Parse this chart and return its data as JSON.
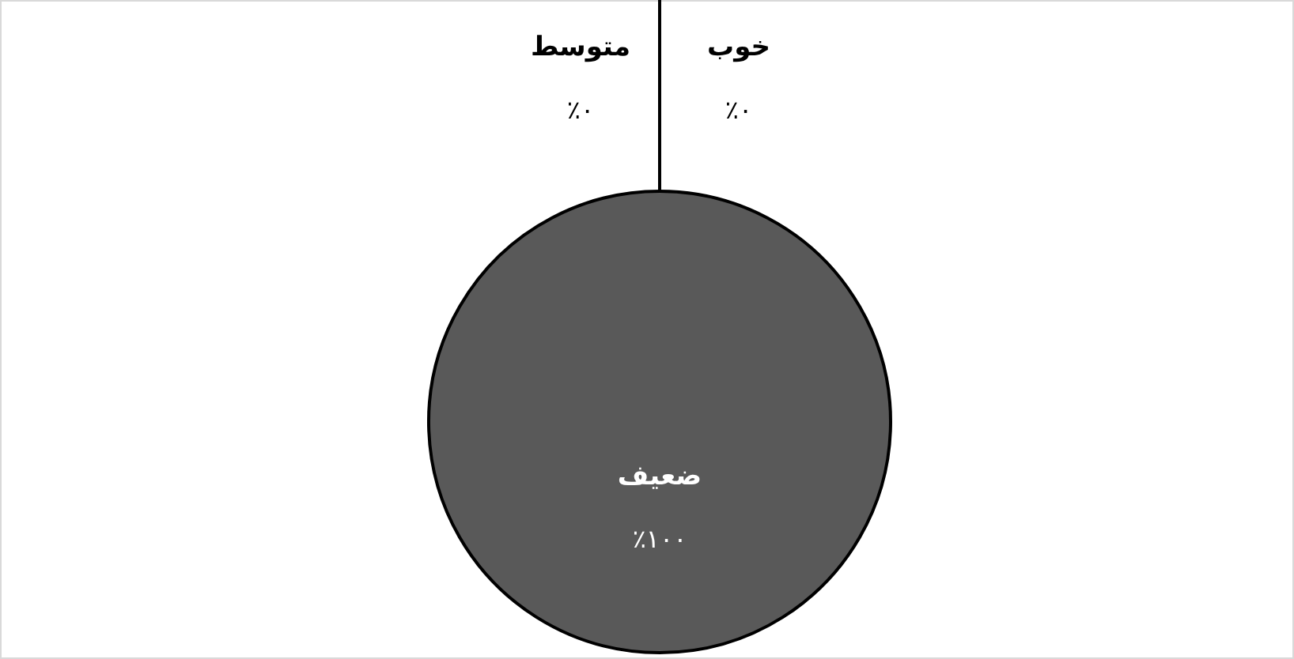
{
  "chart_data": {
    "type": "pie",
    "categories": [
      "خوب",
      "متوسط",
      "ضعیف"
    ],
    "values": [
      0,
      0,
      100
    ],
    "colors": [
      "#595959",
      "#595959",
      "#595959"
    ],
    "value_labels": [
      "٪۰",
      "٪۰",
      "٪۱۰۰"
    ]
  }
}
